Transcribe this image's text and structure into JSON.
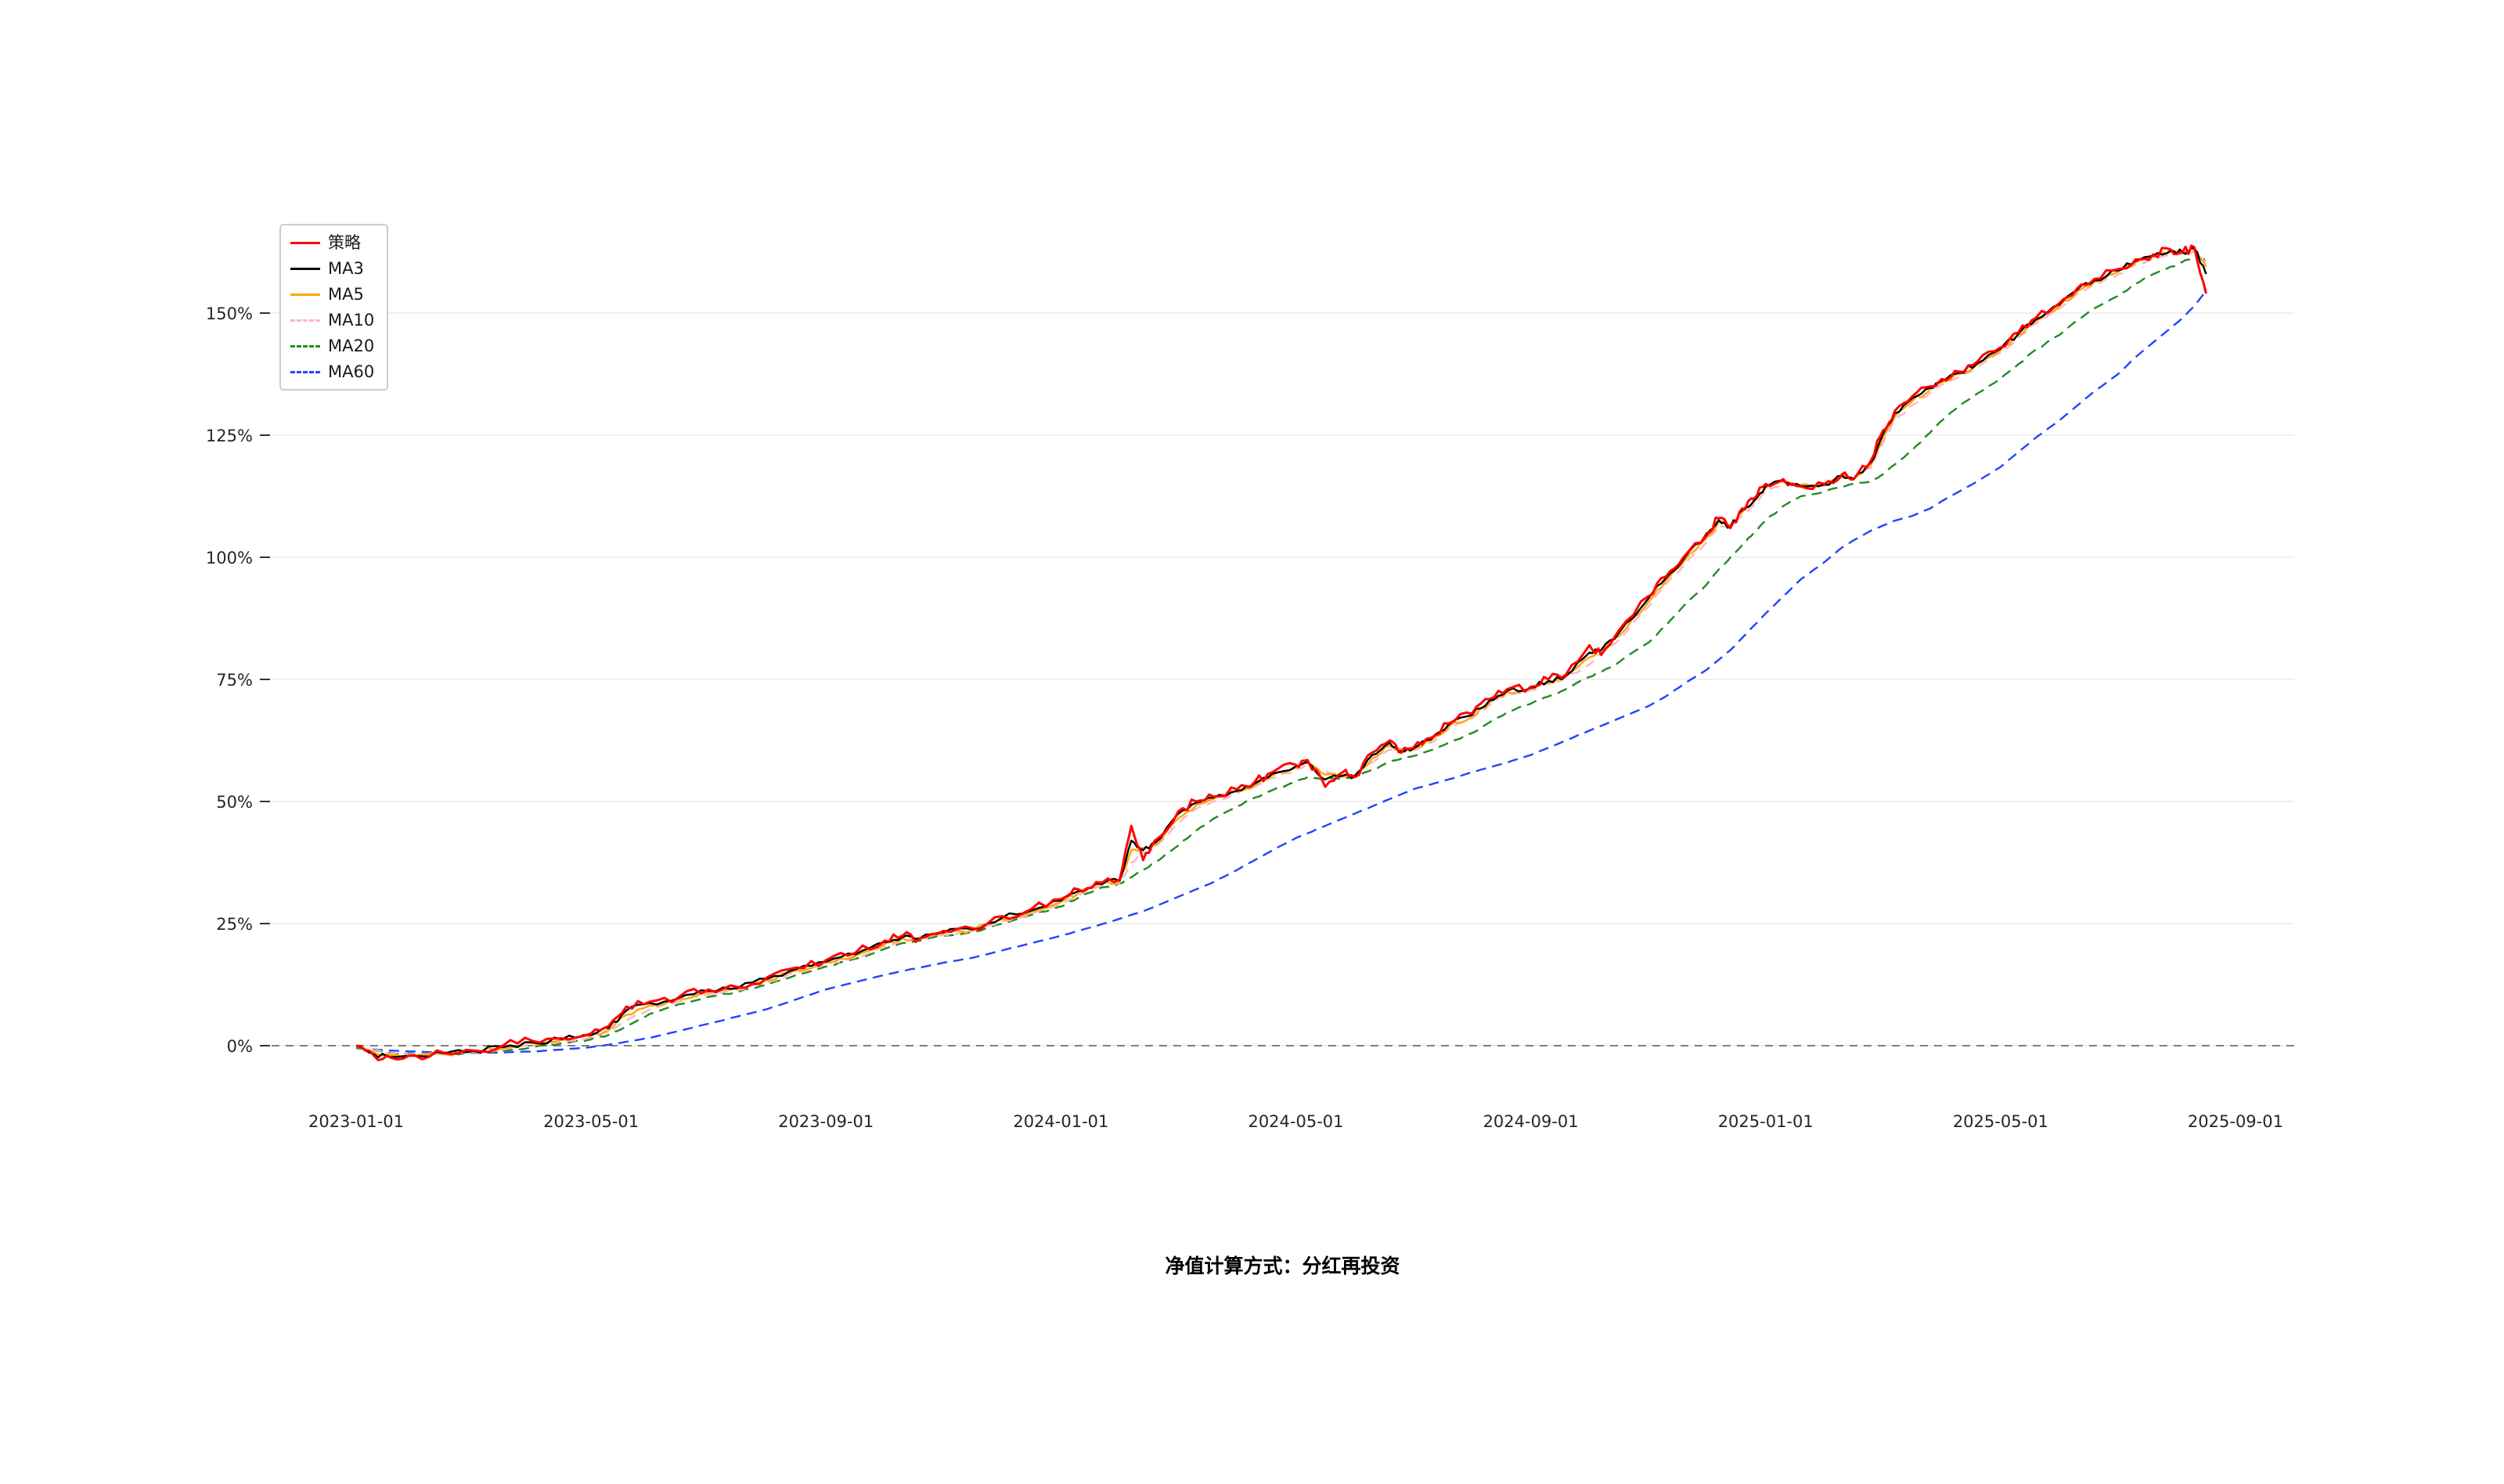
{
  "page": {
    "background": "#ffffff"
  },
  "chart_data": {
    "type": "line",
    "title": "",
    "caption": "净值计算方式：分红再投资",
    "legend_position": "top-left",
    "grid": "horizontal",
    "zero_line_dashed": true,
    "x_axis": {
      "start_date": "2023-01-01",
      "unit": "months_since_start",
      "tick_labels": [
        "2023-01-01",
        "2023-05-01",
        "2023-09-01",
        "2024-01-01",
        "2024-05-01",
        "2024-09-01",
        "2025-01-01",
        "2025-05-01",
        "2025-09-01"
      ],
      "tick_positions_months": [
        0,
        4,
        8,
        12,
        16,
        20,
        24,
        28,
        32
      ]
    },
    "y_axis": {
      "unit": "%",
      "ticks_percent": [
        0,
        25,
        50,
        75,
        100,
        125,
        150
      ]
    },
    "xlim_months": [
      -1.44,
      33
    ],
    "ylim_percent": [
      -8,
      168
    ],
    "x_months": [
      0,
      0.3,
      0.6,
      1,
      1.5,
      2,
      2.5,
      3,
      3.5,
      4,
      4.3,
      4.6,
      5,
      5.5,
      6,
      6.5,
      7,
      7.5,
      8,
      8.5,
      9,
      9.3,
      9.6,
      10,
      10.5,
      11,
      11.5,
      12,
      12.3,
      12.6,
      13,
      13.2,
      13.4,
      13.6,
      14,
      14.3,
      14.6,
      15,
      15.3,
      15.6,
      16,
      16.2,
      16.5,
      16.8,
      17,
      17.3,
      17.6,
      17.8,
      18,
      18.3,
      18.6,
      19,
      19.3,
      19.6,
      20,
      20.3,
      20.6,
      21,
      21.2,
      21.5,
      22,
      22.3,
      22.6,
      23,
      23.2,
      23.4,
      23.6,
      23.8,
      24,
      24.3,
      24.6,
      25,
      25.3,
      25.5,
      25.8,
      26,
      26.2,
      26.5,
      26.8,
      27,
      27.3,
      27.6,
      28,
      28.3,
      28.6,
      29,
      29.3,
      29.6,
      30,
      30.3,
      30.6,
      30.9,
      31.1,
      31.3,
      31.5
    ],
    "series": [
      {
        "name": "策略",
        "color": "#ff0000",
        "dash": "solid",
        "values_percent": [
          0,
          -2,
          -2.5,
          -2,
          -1.5,
          -1,
          0,
          1,
          1.5,
          2.5,
          4,
          8,
          9,
          10,
          11.5,
          12,
          14,
          16,
          17.5,
          19,
          21.5,
          22.5,
          22,
          23.5,
          24,
          26.5,
          28,
          30,
          32,
          33.5,
          34,
          45,
          38,
          42,
          48,
          50,
          51,
          52.5,
          54,
          56,
          57.5,
          58.5,
          53,
          56,
          55,
          60,
          62.5,
          60,
          61,
          63,
          66,
          68,
          71,
          73,
          73.5,
          75,
          76,
          82,
          80,
          85,
          92,
          96,
          100,
          105,
          108,
          106,
          110,
          112,
          115,
          116,
          114.5,
          115,
          117,
          116,
          120,
          126,
          130,
          133,
          135,
          136.5,
          138,
          140,
          143,
          146,
          149,
          152,
          155,
          157,
          159,
          161,
          162,
          163,
          162.5,
          163.5,
          154
        ]
      },
      {
        "name": "MA3",
        "color": "#000000",
        "dash": "solid",
        "values_percent": [
          0,
          -1.7,
          -2.3,
          -2.1,
          -1.6,
          -1.1,
          -0.3,
          0.7,
          1.3,
          2.2,
          3.6,
          7.2,
          8.7,
          9.8,
          11.2,
          11.8,
          13.7,
          15.7,
          17.2,
          18.7,
          21.2,
          22.2,
          22,
          23.2,
          23.8,
          26.2,
          27.7,
          29.7,
          31.7,
          33.2,
          33.8,
          42,
          40,
          41.5,
          47.5,
          49.7,
          50.8,
          52.2,
          53.7,
          55.7,
          57.2,
          58.1,
          54.5,
          55.3,
          55.2,
          59.5,
          62,
          60.3,
          60.8,
          62.7,
          65.7,
          67.7,
          70.7,
          72.7,
          73.3,
          74.7,
          75.8,
          80.5,
          81,
          84.5,
          91.5,
          95.7,
          99.6,
          104.6,
          107.6,
          106.2,
          109.6,
          111.6,
          114.6,
          115.7,
          114.6,
          114.9,
          116.7,
          116,
          119.5,
          125.3,
          129.5,
          132.6,
          134.7,
          136.2,
          137.8,
          139.7,
          142.7,
          145.7,
          148.7,
          151.7,
          154.7,
          156.7,
          158.7,
          160.7,
          161.8,
          162.8,
          162.4,
          163.2,
          158
        ]
      },
      {
        "name": "MA5",
        "color": "#ffa500",
        "dash": "solid",
        "values_percent": [
          0,
          -1.4,
          -2,
          -2,
          -1.7,
          -1.2,
          -0.5,
          0.5,
          1.2,
          2,
          3.2,
          6.3,
          8.2,
          9.5,
          11,
          11.7,
          13.4,
          15.4,
          17,
          18.4,
          20.8,
          22,
          21.9,
          23,
          23.7,
          25.9,
          27.4,
          29.4,
          31.3,
          32.9,
          33.6,
          40,
          40.5,
          41,
          46.5,
          49.2,
          50.5,
          52,
          53.4,
          55.3,
          56.9,
          57.8,
          55.5,
          55,
          55.3,
          58.8,
          61.4,
          60.6,
          60.7,
          62.4,
          65.3,
          67.4,
          70.3,
          72.4,
          73.1,
          74.4,
          75.6,
          79.5,
          81,
          83.8,
          90.8,
          95.2,
          99,
          104,
          107.2,
          106.5,
          109.2,
          111.2,
          114.2,
          115.5,
          114.8,
          114.8,
          116.5,
          116.1,
          119,
          124.5,
          128.8,
          132,
          134.3,
          135.9,
          137.5,
          139.4,
          142.4,
          145.4,
          148.4,
          151.4,
          154.4,
          156.4,
          158.4,
          160.4,
          161.5,
          162.5,
          162.3,
          163,
          159.5
        ]
      },
      {
        "name": "MA10",
        "color": "#ffb3c6",
        "dash": "dashed",
        "values_percent": [
          0,
          -1,
          -1.6,
          -1.9,
          -1.8,
          -1.4,
          -0.8,
          0.2,
          0.9,
          1.7,
          2.7,
          5.2,
          7.4,
          9,
          10.6,
          11.4,
          13,
          15,
          16.6,
          18,
          20.3,
          21.6,
          21.8,
          22.7,
          23.5,
          25.5,
          27,
          29,
          30.8,
          32.4,
          33.2,
          37.5,
          39.5,
          40.5,
          45.5,
          48.5,
          50,
          51.6,
          53,
          54.8,
          56.4,
          57.4,
          56.3,
          55.2,
          55.5,
          58,
          60.6,
          60.8,
          60.5,
          62,
          64.8,
          67,
          69.8,
          72,
          72.8,
          74,
          75.3,
          78,
          80.5,
          83,
          89.8,
          94.5,
          98.2,
          103.2,
          106.5,
          106.6,
          108.6,
          110.6,
          113.6,
          115.2,
          115,
          114.7,
          116.2,
          116.2,
          118.4,
          123.5,
          128,
          131.2,
          133.7,
          135.4,
          137,
          138.9,
          141.9,
          144.9,
          147.9,
          150.9,
          153.9,
          155.9,
          157.9,
          159.9,
          161.1,
          162.1,
          162.1,
          162.7,
          160.5
        ]
      },
      {
        "name": "MA20",
        "color": "#228b22",
        "dash": "dashed",
        "values_percent": [
          -0.5,
          -1,
          -1.5,
          -1.8,
          -1.8,
          -1.5,
          -1,
          -0.3,
          0.5,
          1.3,
          2.2,
          4,
          6.5,
          8.5,
          10,
          11,
          12.5,
          14.5,
          16.2,
          17.8,
          19.8,
          21,
          21.5,
          22.5,
          23.3,
          25,
          26.8,
          28.5,
          30.3,
          32,
          33.2,
          34.5,
          36,
          37.5,
          41,
          44,
          46.5,
          49,
          50.8,
          52.3,
          54,
          55,
          54.5,
          54.8,
          55,
          56.5,
          58,
          58.8,
          59.3,
          60.5,
          62,
          64,
          66.2,
          68.3,
          70,
          71.5,
          73,
          75.5,
          76.5,
          78.5,
          82.5,
          86,
          90,
          94.5,
          97.5,
          100,
          102.5,
          105,
          107.5,
          110.5,
          112.5,
          113.5,
          114.5,
          115,
          115.5,
          117,
          119,
          122,
          125.5,
          128,
          131,
          133.5,
          136.5,
          139.5,
          142.5,
          145.5,
          148.5,
          151,
          153.5,
          156,
          158,
          159.5,
          160.5,
          161.5,
          161
        ]
      },
      {
        "name": "MA60",
        "color": "#2244ff",
        "dash": "dashed",
        "values_percent": [
          -0.5,
          -0.8,
          -1,
          -1.2,
          -1.4,
          -1.5,
          -1.4,
          -1.2,
          -0.8,
          -0.3,
          0.2,
          0.8,
          1.6,
          3,
          4.5,
          6,
          7.5,
          9.5,
          11.5,
          13,
          14.5,
          15.3,
          16,
          17,
          18,
          19.5,
          21,
          22.5,
          23.5,
          24.5,
          26,
          26.8,
          27.5,
          28.5,
          30.5,
          32,
          33.5,
          36,
          38,
          40,
          42.5,
          43.5,
          45,
          46.5,
          47.5,
          49,
          50.5,
          51.5,
          52.5,
          53.5,
          54.5,
          56,
          57,
          58,
          59.5,
          61,
          62.5,
          64.5,
          65.5,
          67,
          69.5,
          71.5,
          74,
          77,
          79,
          81,
          83.5,
          86,
          88.5,
          92,
          95.5,
          99,
          102,
          103.5,
          105.5,
          106.5,
          107.5,
          108.5,
          110,
          111.5,
          113.5,
          115.5,
          118.5,
          121.5,
          124.5,
          128,
          131,
          134,
          137.5,
          141,
          144,
          147,
          149,
          151.5,
          154.5
        ]
      }
    ]
  }
}
